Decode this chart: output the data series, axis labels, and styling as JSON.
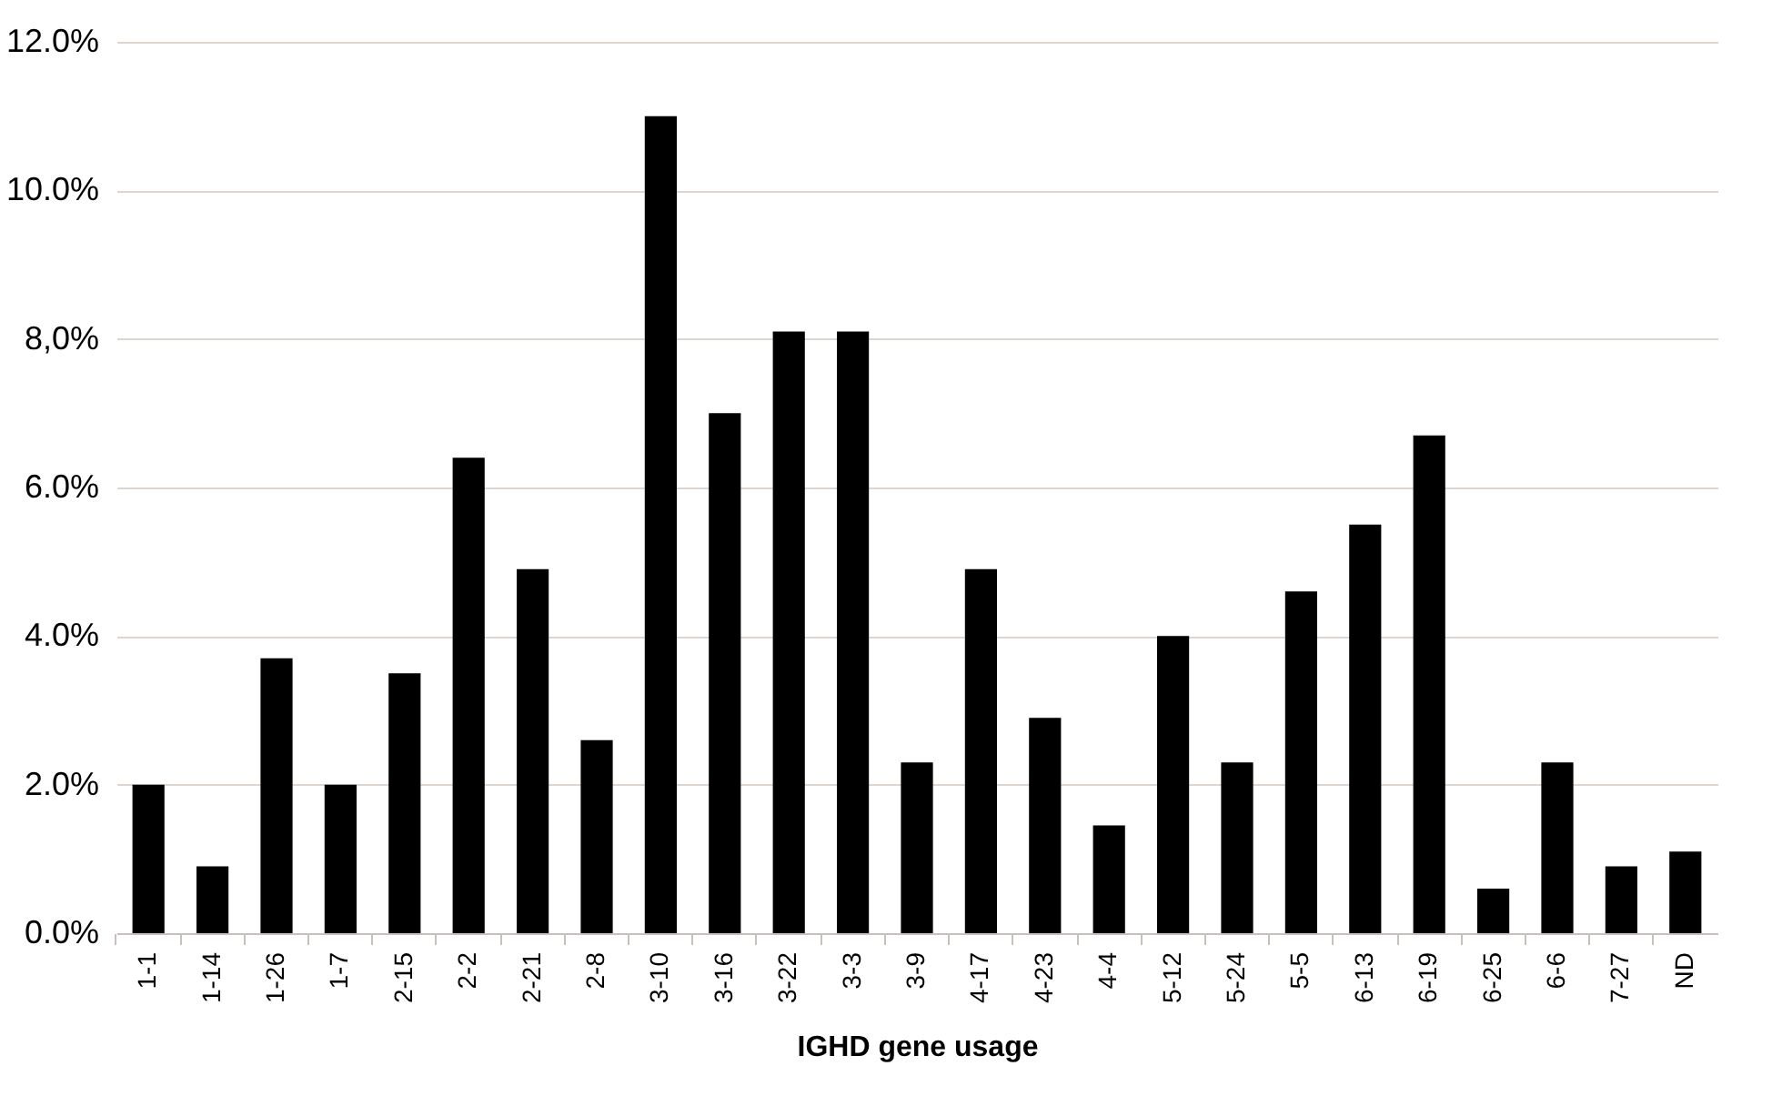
{
  "chart_data": {
    "type": "bar",
    "xlabel": "IGHD gene usage",
    "categories": [
      "1-1",
      "1-14",
      "1-26",
      "1-7",
      "2-15",
      "2-2",
      "2-21",
      "2-8",
      "3-10",
      "3-16",
      "3-22",
      "3-3",
      "3-9",
      "4-17",
      "4-23",
      "4-4",
      "5-12",
      "5-24",
      "5-5",
      "6-13",
      "6-19",
      "6-25",
      "6-6",
      "7-27",
      "ND"
    ],
    "values": [
      2.0,
      0.9,
      3.7,
      2.0,
      3.5,
      6.4,
      4.9,
      2.6,
      11.0,
      7.0,
      8.1,
      8.1,
      2.3,
      4.9,
      2.9,
      1.45,
      4.0,
      2.3,
      4.6,
      5.5,
      6.7,
      0.6,
      2.3,
      0.9,
      1.1
    ],
    "color": "#000000",
    "ylim": [
      0,
      12
    ],
    "yticks": [
      {
        "value": 0,
        "label": "0.0%"
      },
      {
        "value": 2,
        "label": "2.0%"
      },
      {
        "value": 4,
        "label": "4.0%"
      },
      {
        "value": 6,
        "label": "6.0%"
      },
      {
        "value": 8,
        "label": "8,0%"
      },
      {
        "value": 10,
        "label": "10.0%"
      },
      {
        "value": 12,
        "label": "12.0%"
      }
    ],
    "grid": "y"
  }
}
